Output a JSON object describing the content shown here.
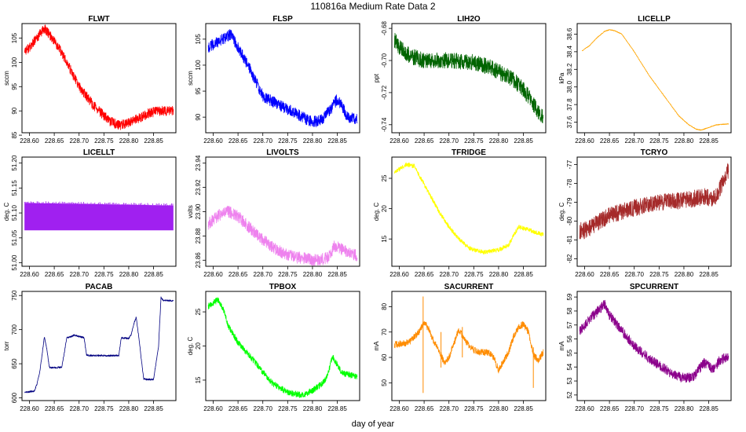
{
  "page": {
    "title": "110816a   Medium Rate Data 2",
    "xlabel": "day of year"
  },
  "chart_data": [
    {
      "name": "FLWT",
      "type": "line",
      "title": "FLWT",
      "ylabel": "sccm",
      "color": "#ff0000",
      "xlim": [
        228.585,
        228.895
      ],
      "ylim": [
        85.5,
        108
      ],
      "xticks": [
        "228.60",
        "228.65",
        "228.70",
        "228.75",
        "228.80",
        "228.85"
      ],
      "yticks": [
        85,
        90,
        95,
        100,
        105
      ],
      "yticklabels": [
        "85",
        "90",
        "95",
        "100",
        "105"
      ],
      "noise": 1.0,
      "series": [
        {
          "x": [
            228.59,
            228.6,
            228.615,
            228.63,
            228.65,
            228.67,
            228.7,
            228.73,
            228.76,
            228.78,
            228.8,
            228.82,
            228.84,
            228.86,
            228.89
          ],
          "y": [
            102.5,
            103,
            105,
            107,
            104.5,
            101,
            95,
            91,
            88,
            87,
            87.5,
            88.5,
            89.5,
            90,
            90
          ]
        }
      ]
    },
    {
      "name": "FLSP",
      "type": "line",
      "title": "FLSP",
      "ylabel": "sccm",
      "color": "#0000ff",
      "xlim": [
        228.585,
        228.895
      ],
      "ylim": [
        87,
        108
      ],
      "xticks": [
        "228.60",
        "228.65",
        "228.70",
        "228.75",
        "228.80",
        "228.85"
      ],
      "yticks": [
        90,
        95,
        100,
        105
      ],
      "yticklabels": [
        "90",
        "95",
        "100",
        "105"
      ],
      "noise": 1.1,
      "series": [
        {
          "x": [
            228.59,
            228.6,
            228.62,
            228.635,
            228.65,
            228.67,
            228.7,
            228.73,
            228.76,
            228.79,
            228.8,
            228.82,
            228.84,
            228.85,
            228.86,
            228.87,
            228.89
          ],
          "y": [
            103.5,
            104,
            105,
            106,
            103.5,
            100,
            94,
            92.5,
            91,
            89.5,
            89,
            89.5,
            92,
            93.5,
            92,
            90,
            89.5
          ]
        }
      ]
    },
    {
      "name": "LIH2O",
      "type": "line",
      "title": "LIH2O",
      "ylabel": "ppt",
      "color": "#006400",
      "xlim": [
        228.585,
        228.895
      ],
      "ylim": [
        -0.745,
        -0.677
      ],
      "xticks": [
        "228.60",
        "228.65",
        "228.70",
        "228.75",
        "228.80",
        "228.85"
      ],
      "yticks": [
        -0.74,
        -0.72,
        -0.7,
        -0.68
      ],
      "yticklabels": [
        "-0.74",
        "-0.72",
        "-0.70",
        "-0.68"
      ],
      "noise": 0.005,
      "series": [
        {
          "x": [
            228.59,
            228.6,
            228.62,
            228.65,
            228.7,
            228.75,
            228.78,
            228.8,
            228.83,
            228.85,
            228.87,
            228.89
          ],
          "y": [
            -0.687,
            -0.692,
            -0.697,
            -0.7,
            -0.7,
            -0.701,
            -0.704,
            -0.707,
            -0.712,
            -0.718,
            -0.727,
            -0.736
          ]
        }
      ]
    },
    {
      "name": "LICELLP",
      "type": "line",
      "title": "LICELLP",
      "ylabel": "kPa",
      "color": "#ffa500",
      "xlim": [
        228.585,
        228.895
      ],
      "ylim": [
        37.48,
        38.72
      ],
      "xticks": [
        "228.60",
        "228.65",
        "228.70",
        "228.75",
        "228.80",
        "228.85"
      ],
      "yticks": [
        37.6,
        37.8,
        38.0,
        38.2,
        38.4,
        38.6
      ],
      "yticklabels": [
        "37.6",
        "37.8",
        "38.0",
        "38.2",
        "38.4",
        "38.6"
      ],
      "noise": 0.004,
      "series": [
        {
          "x": [
            228.595,
            228.61,
            228.625,
            228.64,
            228.65,
            228.66,
            228.675,
            228.7,
            228.73,
            228.76,
            228.79,
            228.81,
            228.825,
            228.835,
            228.85,
            228.865,
            228.89
          ],
          "y": [
            38.41,
            38.47,
            38.56,
            38.63,
            38.65,
            38.64,
            38.6,
            38.4,
            38.13,
            37.9,
            37.67,
            37.57,
            37.52,
            37.51,
            37.54,
            37.57,
            37.58
          ]
        }
      ]
    },
    {
      "name": "LICELLT",
      "type": "band",
      "title": "LICELLT",
      "ylabel": "deg. C",
      "color": "#a020f0",
      "xlim": [
        228.585,
        228.895
      ],
      "ylim": [
        50.993,
        51.212
      ],
      "xticks": [
        "228.60",
        "228.65",
        "228.70",
        "228.75",
        "228.80",
        "228.85"
      ],
      "yticks": [
        51.0,
        51.05,
        51.1,
        51.15,
        51.2
      ],
      "yticklabels": [
        "51.00",
        "51.05",
        "51.10",
        "51.15",
        "51.20"
      ],
      "band": {
        "x": [
          228.59,
          228.89
        ],
        "low": [
          51.065,
          51.065
        ],
        "high": [
          51.12,
          51.115
        ]
      }
    },
    {
      "name": "LIVOLTS",
      "type": "line",
      "title": "LIVOLTS",
      "ylabel": "volts",
      "color": "#ee82ee",
      "xlim": [
        228.585,
        228.895
      ],
      "ylim": [
        23.855,
        23.945
      ],
      "xticks": [
        "228.60",
        "228.65",
        "228.70",
        "228.75",
        "228.80",
        "228.85"
      ],
      "yticks": [
        23.86,
        23.88,
        23.9,
        23.92,
        23.94
      ],
      "yticklabels": [
        "23.86",
        "23.88",
        "23.90",
        "23.92",
        "23.94"
      ],
      "noise": 0.005,
      "series": [
        {
          "x": [
            228.59,
            228.6,
            228.615,
            228.63,
            228.65,
            228.67,
            228.7,
            228.73,
            228.76,
            228.79,
            228.81,
            228.83,
            228.845,
            228.86,
            228.875,
            228.89
          ],
          "y": [
            23.89,
            23.893,
            23.898,
            23.9,
            23.896,
            23.888,
            23.877,
            23.868,
            23.863,
            23.861,
            23.86,
            23.862,
            23.872,
            23.869,
            23.865,
            23.864
          ]
        }
      ]
    },
    {
      "name": "TFRIDGE",
      "type": "line",
      "title": "TFRIDGE",
      "ylabel": "deg. C",
      "color": "#ffff00",
      "xlim": [
        228.585,
        228.895
      ],
      "ylim": [
        10.5,
        28.5
      ],
      "xticks": [
        "228.60",
        "228.65",
        "228.70",
        "228.75",
        "228.80",
        "228.85"
      ],
      "yticks": [
        15,
        20,
        25
      ],
      "yticklabels": [
        "15",
        "20",
        "25"
      ],
      "noise": 0.35,
      "series": [
        {
          "x": [
            228.59,
            228.6,
            228.615,
            228.63,
            228.64,
            228.66,
            228.68,
            228.7,
            228.72,
            228.74,
            228.77,
            228.8,
            228.82,
            228.83,
            228.84,
            228.86,
            228.89
          ],
          "y": [
            26,
            26.5,
            27.3,
            27,
            25.5,
            22.5,
            19.5,
            17,
            15,
            13.5,
            12.8,
            13.2,
            14,
            15.5,
            17,
            16.5,
            15.7
          ]
        }
      ]
    },
    {
      "name": "TCRYO",
      "type": "line",
      "title": "TCRYO",
      "ylabel": "deg. C",
      "color": "#a52a2a",
      "xlim": [
        228.585,
        228.895
      ],
      "ylim": [
        -82.4,
        -76.6
      ],
      "xticks": [
        "228.60",
        "228.65",
        "228.70",
        "228.75",
        "228.80",
        "228.85"
      ],
      "yticks": [
        -82,
        -81,
        -80,
        -79,
        -78,
        -77
      ],
      "yticklabels": [
        "-82",
        "-81",
        "-80",
        "-79",
        "-78",
        "-77"
      ],
      "noise": 0.45,
      "series": [
        {
          "x": [
            228.59,
            228.6,
            228.62,
            228.65,
            228.7,
            228.75,
            228.8,
            228.84,
            228.86,
            228.87,
            228.88,
            228.89
          ],
          "y": [
            -80.5,
            -80.5,
            -80.2,
            -79.7,
            -79.3,
            -79,
            -78.9,
            -78.7,
            -78.8,
            -78.4,
            -77.8,
            -77.3
          ]
        }
      ]
    },
    {
      "name": "PACAB",
      "type": "line",
      "title": "PACAB",
      "ylabel": "torr",
      "color": "#000080",
      "xlim": [
        228.585,
        228.895
      ],
      "ylim": [
        596,
        756
      ],
      "xticks": [
        "228.60",
        "228.65",
        "228.70",
        "228.75",
        "228.80",
        "228.85"
      ],
      "yticks": [
        600,
        650,
        700,
        750
      ],
      "yticklabels": [
        "600",
        "650",
        "700",
        "750"
      ],
      "noise": 1.2,
      "series": [
        {
          "x": [
            228.59,
            228.61,
            228.615,
            228.62,
            228.625,
            228.63,
            228.635,
            228.64,
            228.645,
            228.665,
            228.67,
            228.675,
            228.685,
            228.69,
            228.7,
            228.71,
            228.715,
            228.72,
            228.78,
            228.785,
            228.8,
            228.805,
            228.81,
            228.815,
            228.82,
            228.83,
            228.835,
            228.85,
            228.86,
            228.865,
            228.87,
            228.89
          ],
          "y": [
            608,
            610,
            620,
            635,
            660,
            689,
            672,
            645,
            644,
            645,
            665,
            688,
            690,
            692,
            690,
            688,
            663,
            662,
            662,
            688,
            687,
            693,
            708,
            718,
            690,
            628,
            627,
            627,
            675,
            747,
            743,
            742
          ]
        }
      ]
    },
    {
      "name": "TPBOX",
      "type": "line",
      "title": "TPBOX",
      "ylabel": "deg. C",
      "color": "#00ff00",
      "xlim": [
        228.585,
        228.895
      ],
      "ylim": [
        12,
        28
      ],
      "xticks": [
        "228.60",
        "228.65",
        "228.70",
        "228.75",
        "228.80",
        "228.85"
      ],
      "yticks": [
        15,
        20,
        25
      ],
      "yticklabels": [
        "15",
        "20",
        "25"
      ],
      "noise": 0.45,
      "series": [
        {
          "x": [
            228.59,
            228.6,
            228.61,
            228.62,
            228.63,
            228.65,
            228.68,
            228.7,
            228.72,
            228.75,
            228.78,
            228.8,
            228.82,
            228.83,
            228.84,
            228.86,
            228.89
          ],
          "y": [
            25.8,
            26.3,
            26.8,
            25.5,
            23,
            20.5,
            18,
            16.2,
            14.5,
            13.2,
            12.8,
            13.5,
            14.5,
            15.5,
            18.5,
            16,
            15.5
          ]
        }
      ]
    },
    {
      "name": "SACURRENT",
      "type": "line",
      "title": "SACURRENT",
      "ylabel": "mA",
      "color": "#ff8c00",
      "xlim": [
        228.585,
        228.895
      ],
      "ylim": [
        43,
        86
      ],
      "xticks": [
        "228.60",
        "228.65",
        "228.70",
        "228.75",
        "228.80",
        "228.85"
      ],
      "yticks": [
        50,
        60,
        70,
        80
      ],
      "yticklabels": [
        "50",
        "60",
        "70",
        "80"
      ],
      "noise": 1.3,
      "series": [
        {
          "x": [
            228.59,
            228.62,
            228.64,
            228.65,
            228.66,
            228.67,
            228.68,
            228.69,
            228.7,
            228.72,
            228.735,
            228.75,
            228.76,
            228.78,
            228.79,
            228.8,
            228.82,
            228.83,
            228.84,
            228.85,
            228.86,
            228.87,
            228.88,
            228.89
          ],
          "y": [
            65,
            66,
            70,
            74,
            71,
            66,
            63,
            58,
            60,
            71,
            66,
            63,
            62,
            62,
            60,
            55,
            62,
            68,
            72,
            73,
            70,
            61,
            59,
            62
          ]
        }
      ],
      "spikes": [
        {
          "x": 228.648,
          "low": 46,
          "high": 84
        },
        {
          "x": 228.684,
          "low": 56,
          "high": 70
        },
        {
          "x": 228.727,
          "low": 60,
          "high": 72
        },
        {
          "x": 228.87,
          "low": 48,
          "high": 64
        }
      ]
    },
    {
      "name": "SPCURRENT",
      "type": "line",
      "title": "SPCURRENT",
      "ylabel": "mA",
      "color": "#8b008b",
      "xlim": [
        228.585,
        228.895
      ],
      "ylim": [
        51.6,
        59.4
      ],
      "xticks": [
        "228.60",
        "228.65",
        "228.70",
        "228.75",
        "228.80",
        "228.85"
      ],
      "yticks": [
        52,
        53,
        54,
        55,
        56,
        57,
        58,
        59
      ],
      "yticklabels": [
        "52",
        "53",
        "54",
        "55",
        "56",
        "57",
        "58",
        "59"
      ],
      "noise": 0.35,
      "series": [
        {
          "x": [
            228.59,
            228.6,
            228.615,
            228.63,
            228.64,
            228.65,
            228.67,
            228.7,
            228.73,
            228.76,
            228.78,
            228.8,
            228.82,
            228.84,
            228.85,
            228.86,
            228.87,
            228.89
          ],
          "y": [
            56.5,
            57,
            57.6,
            58.1,
            58.5,
            57.7,
            56.8,
            55.5,
            54.6,
            53.9,
            53.4,
            53.2,
            53.3,
            54.3,
            54.1,
            53.8,
            54.4,
            54.8
          ]
        }
      ]
    }
  ]
}
